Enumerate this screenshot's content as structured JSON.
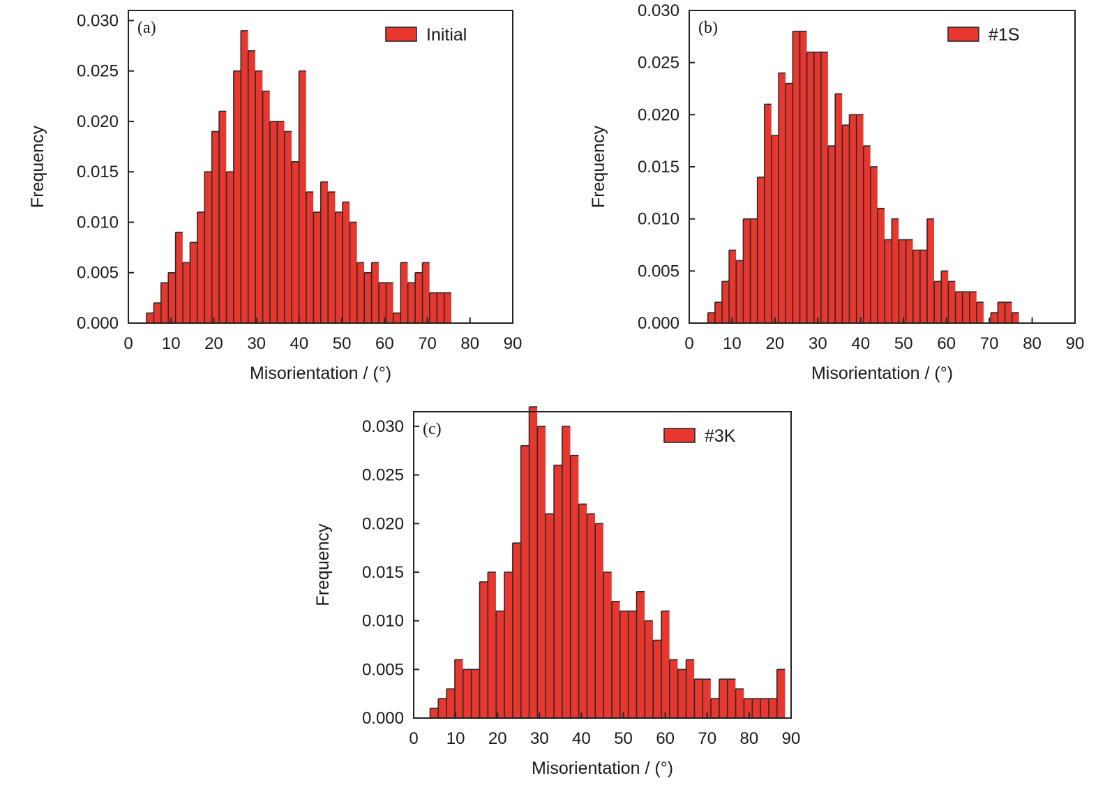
{
  "colors": {
    "bar_fill": "#e8372f",
    "bar_edge": "#2a2a2a",
    "axis": "#222222",
    "text": "#1a1a1a"
  },
  "chart_data": [
    {
      "type": "bar",
      "panel_label": "(a)",
      "legend": "Initial",
      "legend_position": "top-right",
      "xlabel": "Misorientation / (°)",
      "ylabel": "Frequency",
      "xlim": [
        0,
        90
      ],
      "ylim": [
        0,
        0.031
      ],
      "xticks": [
        0,
        10,
        20,
        30,
        40,
        50,
        60,
        70,
        80,
        90
      ],
      "yticks": [
        0.0,
        0.005,
        0.01,
        0.015,
        0.02,
        0.025,
        0.03
      ],
      "ytick_labels": [
        "0.000",
        "0.005",
        "0.010",
        "0.015",
        "0.020",
        "0.025",
        "0.030"
      ],
      "bin_width": 1.7,
      "bin_start": 4.25,
      "values": [
        0.001,
        0.002,
        0.004,
        0.005,
        0.009,
        0.006,
        0.008,
        0.011,
        0.015,
        0.019,
        0.021,
        0.015,
        0.025,
        0.029,
        0.027,
        0.025,
        0.023,
        0.02,
        0.02,
        0.019,
        0.016,
        0.025,
        0.013,
        0.011,
        0.014,
        0.013,
        0.011,
        0.012,
        0.01,
        0.006,
        0.005,
        0.006,
        0.004,
        0.004,
        0.001,
        0.006,
        0.004,
        0.005,
        0.006,
        0.003,
        0.003,
        0.003
      ]
    },
    {
      "type": "bar",
      "panel_label": "(b)",
      "legend": "#1S",
      "legend_position": "top-right",
      "xlabel": "Misorientation / (°)",
      "ylabel": "Frequency",
      "xlim": [
        0,
        90
      ],
      "ylim": [
        0,
        0.03
      ],
      "xticks": [
        0,
        10,
        20,
        30,
        40,
        50,
        60,
        70,
        80,
        90
      ],
      "yticks": [
        0.0,
        0.005,
        0.01,
        0.015,
        0.02,
        0.025,
        0.03
      ],
      "ytick_labels": [
        "0.000",
        "0.005",
        "0.010",
        "0.015",
        "0.020",
        "0.025",
        "0.030"
      ],
      "bin_width": 1.65,
      "bin_start": 4.35,
      "values": [
        0.001,
        0.002,
        0.004,
        0.007,
        0.006,
        0.01,
        0.01,
        0.014,
        0.021,
        0.018,
        0.024,
        0.023,
        0.028,
        0.028,
        0.026,
        0.026,
        0.026,
        0.017,
        0.022,
        0.019,
        0.02,
        0.02,
        0.017,
        0.015,
        0.011,
        0.008,
        0.01,
        0.008,
        0.008,
        0.007,
        0.007,
        0.01,
        0.004,
        0.005,
        0.004,
        0.003,
        0.003,
        0.003,
        0.002,
        0.0,
        0.001,
        0.002,
        0.002,
        0.001
      ]
    },
    {
      "type": "bar",
      "panel_label": "(c)",
      "legend": "#3K",
      "legend_position": "top-right",
      "xlabel": "Misorientation / (°)",
      "ylabel": "Frequency",
      "xlim": [
        0,
        90
      ],
      "ylim": [
        0,
        0.0315
      ],
      "xticks": [
        0,
        10,
        20,
        30,
        40,
        50,
        60,
        70,
        80,
        90
      ],
      "yticks": [
        0.0,
        0.005,
        0.01,
        0.015,
        0.02,
        0.025,
        0.03
      ],
      "ytick_labels": [
        "0.000",
        "0.005",
        "0.010",
        "0.015",
        "0.020",
        "0.025",
        "0.030"
      ],
      "bin_width": 1.97,
      "bin_start": 3.9,
      "values": [
        0.001,
        0.002,
        0.003,
        0.006,
        0.005,
        0.005,
        0.014,
        0.015,
        0.011,
        0.015,
        0.018,
        0.028,
        0.032,
        0.03,
        0.021,
        0.026,
        0.03,
        0.027,
        0.022,
        0.021,
        0.02,
        0.015,
        0.012,
        0.011,
        0.011,
        0.013,
        0.01,
        0.008,
        0.011,
        0.006,
        0.005,
        0.006,
        0.004,
        0.004,
        0.002,
        0.004,
        0.004,
        0.003,
        0.002,
        0.002,
        0.002,
        0.002,
        0.005
      ]
    }
  ]
}
